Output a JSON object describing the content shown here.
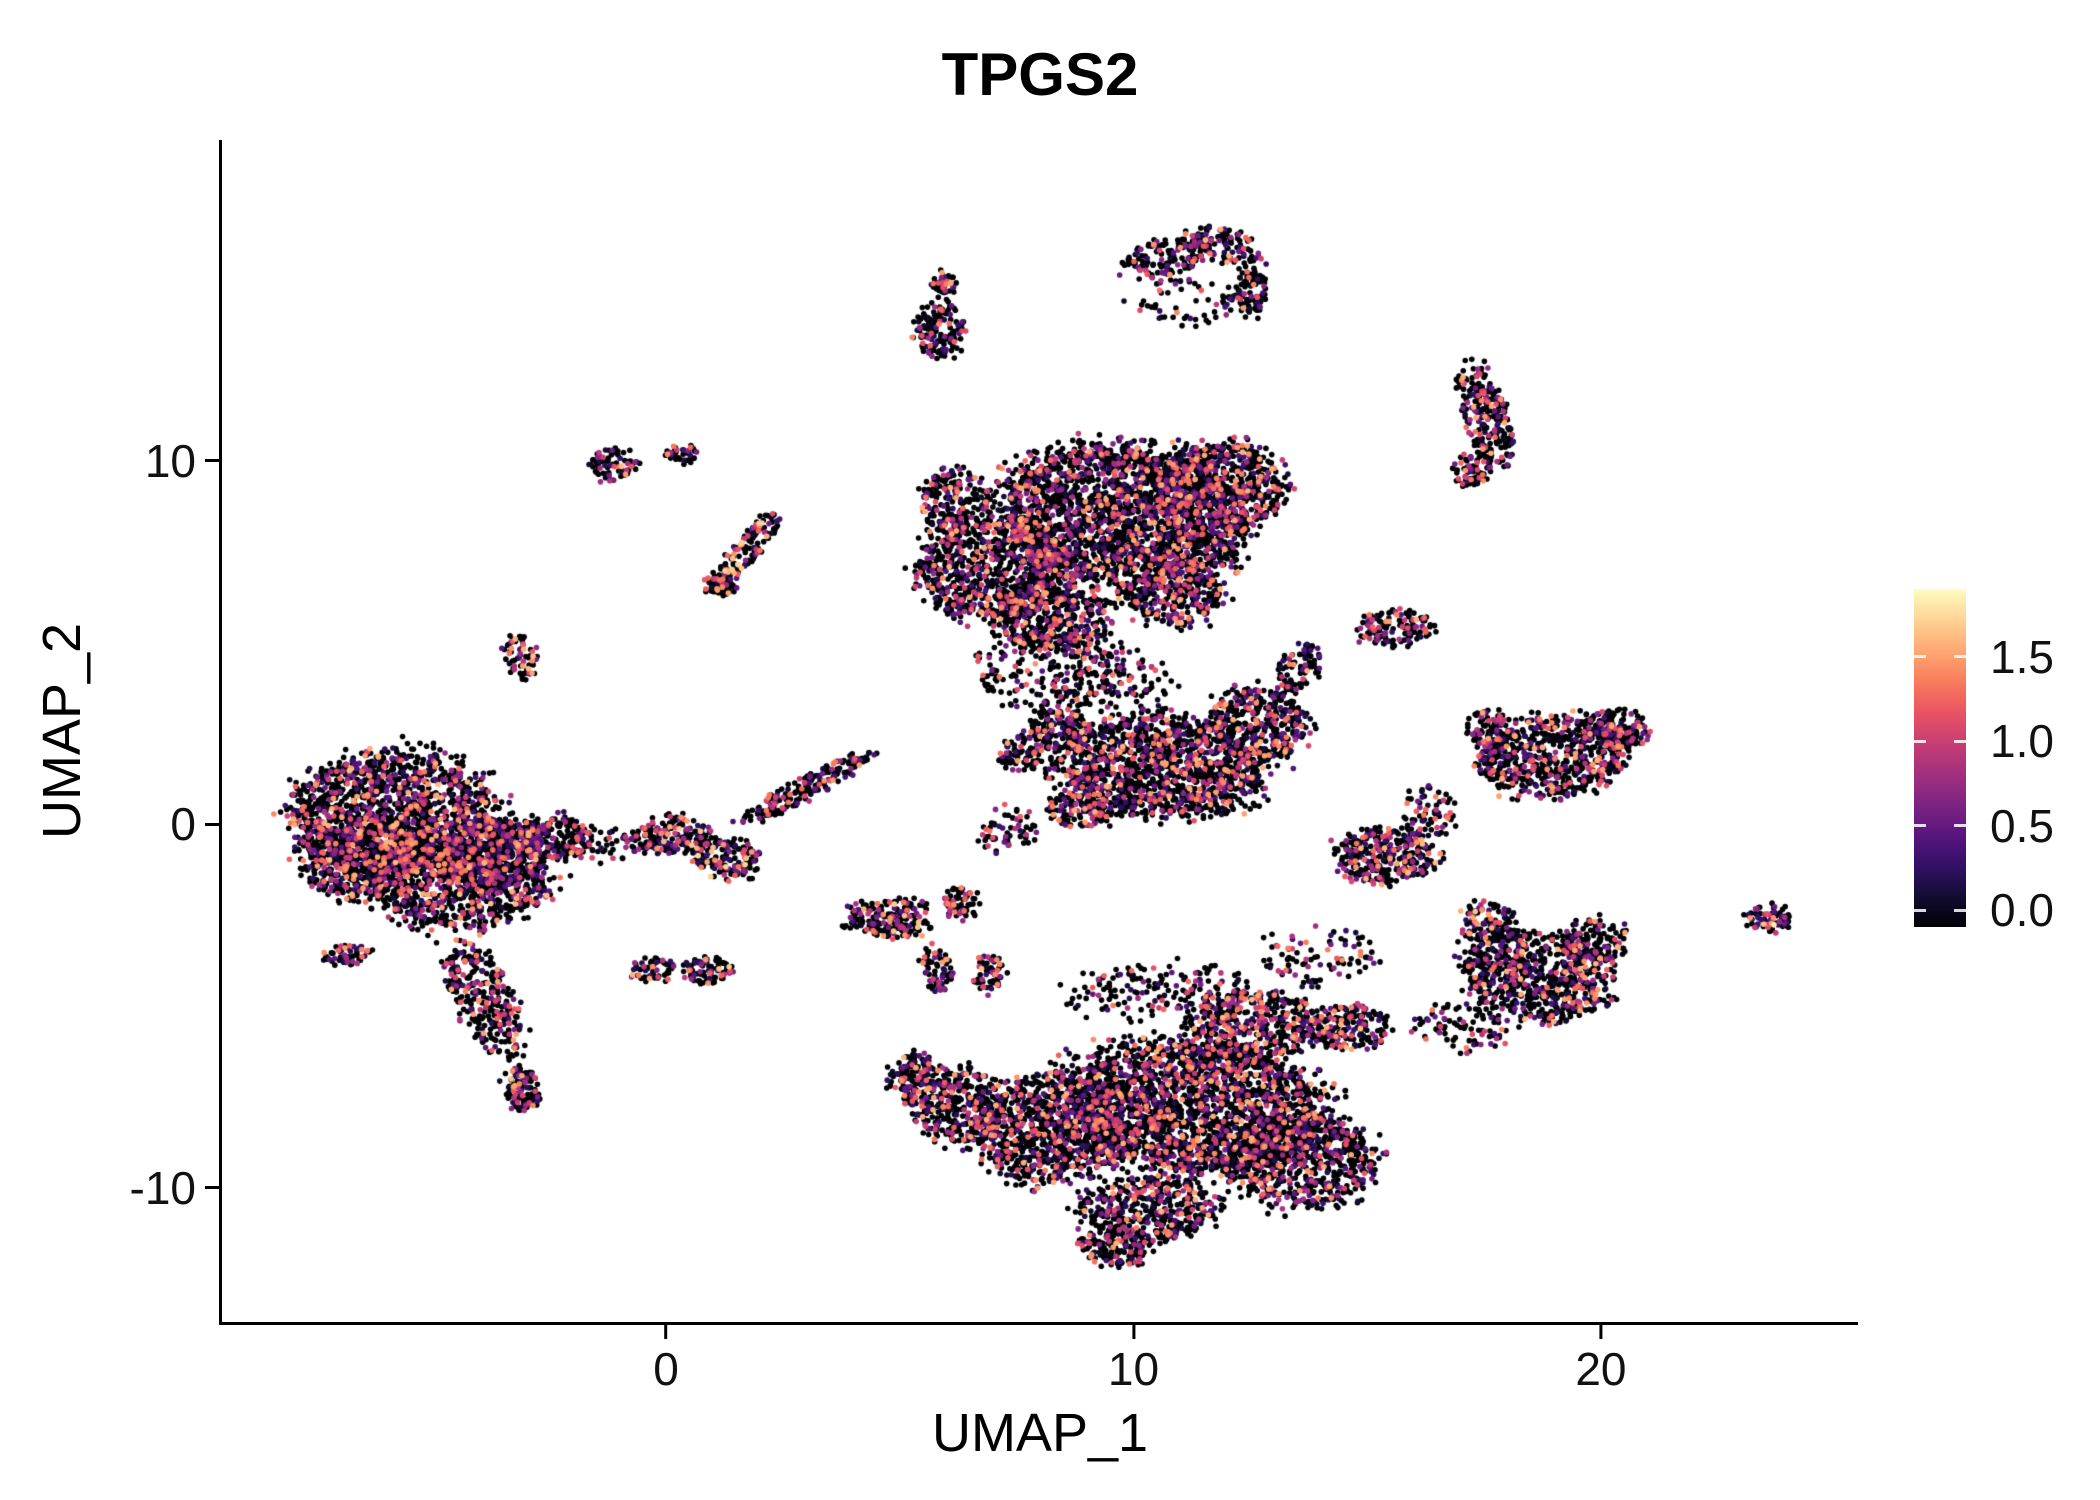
{
  "chart_data": {
    "type": "scatter",
    "title": "TPGS2",
    "xlabel": "UMAP_1",
    "ylabel": "UMAP_2",
    "x_ticks": [
      "0",
      "10",
      "20"
    ],
    "x_tick_values": [
      0,
      10,
      20
    ],
    "y_ticks": [
      "-10",
      "0",
      "10"
    ],
    "y_tick_values": [
      -10,
      0,
      10
    ],
    "xlim": [
      -9.5,
      25.5
    ],
    "ylim": [
      -13.7,
      18.82
    ],
    "grid": false,
    "legend": {
      "position": "right",
      "labels": [
        "1.5",
        "1.0",
        "0.5",
        "0.0"
      ],
      "values": [
        1.5,
        1.0,
        0.5,
        0.0
      ],
      "vmin": -0.1,
      "vmax": 1.9
    },
    "colormap": {
      "name": "magma",
      "stops": [
        "#000004",
        "#120D31",
        "#331067",
        "#59157E",
        "#7E2482",
        "#A3307E",
        "#C83E73",
        "#E95462",
        "#F97C5D",
        "#FEA873",
        "#FED395",
        "#FCFDBF"
      ]
    },
    "point_radius_px": 2.8,
    "point_value_max": 1.9,
    "clusters": [
      {
        "cx": -5.8,
        "cy": 0.3,
        "rx": 2.0,
        "ry": 1.6,
        "rot": 0,
        "n": 1500,
        "hot": 1.1
      },
      {
        "cx": -4.4,
        "cy": -1.4,
        "rx": 1.8,
        "ry": 1.4,
        "rot": 0,
        "n": 1100,
        "hot": 1.1
      },
      {
        "cx": -6.6,
        "cy": -0.9,
        "rx": 1.1,
        "ry": 1.1,
        "rot": 0,
        "n": 500,
        "hot": 1.0
      },
      {
        "cx": -3.6,
        "cy": -0.8,
        "rx": 1.0,
        "ry": 0.9,
        "rot": 0,
        "n": 350,
        "hot": 1.0
      },
      {
        "cx": -3.9,
        "cy": -4.8,
        "rx": 0.6,
        "ry": 1.6,
        "rot": 20,
        "n": 300,
        "hot": 0.9
      },
      {
        "cx": -3.1,
        "cy": -7.3,
        "rx": 0.35,
        "ry": 0.6,
        "rot": 15,
        "n": 110,
        "hot": 1.2
      },
      {
        "cx": -6.8,
        "cy": -3.6,
        "rx": 0.5,
        "ry": 0.28,
        "rot": 10,
        "n": 60,
        "hot": 0.8
      },
      {
        "cx": -2.4,
        "cy": -0.4,
        "rx": 0.8,
        "ry": 0.6,
        "rot": 0,
        "n": 200,
        "hot": 1.0
      },
      {
        "cx": -1.2,
        "cy": -0.6,
        "rx": 0.9,
        "ry": 0.4,
        "rot": 0,
        "n": 70,
        "hot": 0.6
      },
      {
        "cx": -3.1,
        "cy": 4.6,
        "rx": 0.35,
        "ry": 0.6,
        "rot": 0,
        "n": 70,
        "hot": 1.2
      },
      {
        "cx": -1.15,
        "cy": 9.9,
        "rx": 0.45,
        "ry": 0.4,
        "rot": 0,
        "n": 80,
        "hot": 1.3
      },
      {
        "cx": 0.35,
        "cy": 10.2,
        "rx": 0.3,
        "ry": 0.25,
        "rot": 0,
        "n": 40,
        "hot": 1.0
      },
      {
        "cx": 1.75,
        "cy": 7.6,
        "rx": 0.28,
        "ry": 1.05,
        "rot": -32,
        "n": 130,
        "hot": 1.4
      },
      {
        "cx": 1.15,
        "cy": 6.6,
        "rx": 0.33,
        "ry": 0.33,
        "rot": 0,
        "n": 60,
        "hot": 1.3
      },
      {
        "cx": 0.2,
        "cy": -0.3,
        "rx": 0.7,
        "ry": 0.5,
        "rot": 0,
        "n": 170,
        "hot": 1.3
      },
      {
        "cx": 1.3,
        "cy": -0.95,
        "rx": 0.65,
        "ry": 0.5,
        "rot": 0,
        "n": 150,
        "hot": 1.5
      },
      {
        "cx": 3.0,
        "cy": 1.0,
        "rx": 0.28,
        "ry": 1.6,
        "rot": -56,
        "n": 200,
        "hot": 0.9
      },
      {
        "cx": -0.3,
        "cy": -4.0,
        "rx": 0.45,
        "ry": 0.3,
        "rot": 0,
        "n": 60,
        "hot": 1.1
      },
      {
        "cx": 0.9,
        "cy": -4.05,
        "rx": 0.5,
        "ry": 0.33,
        "rot": 0,
        "n": 80,
        "hot": 1.4
      },
      {
        "cx": 4.8,
        "cy": -2.6,
        "rx": 0.85,
        "ry": 0.5,
        "rot": 0,
        "n": 190,
        "hot": 1.3
      },
      {
        "cx": 6.3,
        "cy": -2.2,
        "rx": 0.4,
        "ry": 0.4,
        "rot": 0,
        "n": 70,
        "hot": 1.0
      },
      {
        "cx": 5.8,
        "cy": -4.0,
        "rx": 0.3,
        "ry": 0.6,
        "rot": 10,
        "n": 70,
        "hot": 1.0
      },
      {
        "cx": 6.9,
        "cy": -4.1,
        "rx": 0.3,
        "ry": 0.5,
        "rot": 0,
        "n": 60,
        "hot": 1.2
      },
      {
        "cx": 9.8,
        "cy": 8.5,
        "rx": 2.5,
        "ry": 1.8,
        "rot": -10,
        "n": 2300,
        "hot": 1.0
      },
      {
        "cx": 7.0,
        "cy": 7.0,
        "rx": 1.5,
        "ry": 1.3,
        "rot": 0,
        "n": 850,
        "hot": 1.0
      },
      {
        "cx": 11.9,
        "cy": 9.3,
        "rx": 1.3,
        "ry": 1.1,
        "rot": 0,
        "n": 600,
        "hot": 1.0
      },
      {
        "cx": 8.3,
        "cy": 5.7,
        "rx": 1.2,
        "ry": 0.9,
        "rot": 0,
        "n": 420,
        "hot": 1.0
      },
      {
        "cx": 8.2,
        "cy": 4.2,
        "rx": 1.5,
        "ry": 1.1,
        "rot": 0,
        "n": 230,
        "hot": 0.8
      },
      {
        "cx": 6.2,
        "cy": 8.8,
        "rx": 0.7,
        "ry": 0.9,
        "rot": 0,
        "n": 230,
        "hot": 1.0
      },
      {
        "cx": 10.9,
        "cy": 6.3,
        "rx": 1.0,
        "ry": 0.8,
        "rot": 0,
        "n": 300,
        "hot": 1.0
      },
      {
        "cx": 5.85,
        "cy": 13.6,
        "rx": 0.5,
        "ry": 0.75,
        "rot": 0,
        "n": 150,
        "hot": 1.0
      },
      {
        "cx": 5.95,
        "cy": 14.9,
        "rx": 0.25,
        "ry": 0.3,
        "rot": 0,
        "n": 40,
        "hot": 0.9
      },
      {
        "cx": 10.7,
        "cy": 15.6,
        "rx": 0.9,
        "ry": 0.45,
        "rot": 18,
        "n": 150,
        "hot": 1.1
      },
      {
        "cx": 12.0,
        "cy": 15.9,
        "rx": 0.8,
        "ry": 0.4,
        "rot": -28,
        "n": 110,
        "hot": 1.1
      },
      {
        "cx": 12.5,
        "cy": 14.7,
        "rx": 0.3,
        "ry": 0.75,
        "rot": 0,
        "n": 80,
        "hot": 1.0
      },
      {
        "cx": 11.2,
        "cy": 14.4,
        "rx": 1.2,
        "ry": 0.6,
        "rot": 0,
        "n": 70,
        "hot": 0.7
      },
      {
        "cx": 17.55,
        "cy": 11.2,
        "rx": 0.45,
        "ry": 1.4,
        "rot": 14,
        "n": 240,
        "hot": 1.1
      },
      {
        "cx": 17.2,
        "cy": 9.7,
        "rx": 0.4,
        "ry": 0.4,
        "rot": 0,
        "n": 70,
        "hot": 1.0
      },
      {
        "cx": 15.6,
        "cy": 5.4,
        "rx": 0.75,
        "ry": 0.5,
        "rot": 0,
        "n": 130,
        "hot": 1.1
      },
      {
        "cx": 10.6,
        "cy": 1.6,
        "rx": 2.1,
        "ry": 1.3,
        "rot": -5,
        "n": 1350,
        "hot": 1.0
      },
      {
        "cx": 12.7,
        "cy": 2.8,
        "rx": 1.0,
        "ry": 0.85,
        "rot": -30,
        "n": 350,
        "hot": 1.0
      },
      {
        "cx": 13.55,
        "cy": 4.3,
        "rx": 0.4,
        "ry": 0.65,
        "rot": -20,
        "n": 90,
        "hot": 1.0
      },
      {
        "cx": 8.4,
        "cy": 2.6,
        "rx": 0.6,
        "ry": 0.5,
        "rot": 0,
        "n": 140,
        "hot": 1.1
      },
      {
        "cx": 7.6,
        "cy": 1.9,
        "rx": 0.4,
        "ry": 0.5,
        "rot": 0,
        "n": 80,
        "hot": 1.0
      },
      {
        "cx": 8.9,
        "cy": 0.4,
        "rx": 0.7,
        "ry": 0.5,
        "rot": 0,
        "n": 140,
        "hot": 1.0
      },
      {
        "cx": 9.6,
        "cy": 3.9,
        "rx": 1.2,
        "ry": 0.8,
        "rot": 0,
        "n": 110,
        "hot": 0.7
      },
      {
        "cx": 7.3,
        "cy": -0.2,
        "rx": 0.6,
        "ry": 0.6,
        "rot": 0,
        "n": 60,
        "hot": 0.7
      },
      {
        "cx": 11.3,
        "cy": -7.8,
        "rx": 2.7,
        "ry": 1.7,
        "rot": -8,
        "n": 2300,
        "hot": 1.0
      },
      {
        "cx": 8.3,
        "cy": -8.4,
        "rx": 1.6,
        "ry": 1.4,
        "rot": 0,
        "n": 900,
        "hot": 1.0
      },
      {
        "cx": 13.6,
        "cy": -9.3,
        "rx": 1.5,
        "ry": 1.2,
        "rot": 0,
        "n": 650,
        "hot": 1.0
      },
      {
        "cx": 12.6,
        "cy": -5.5,
        "rx": 1.3,
        "ry": 0.9,
        "rot": 0,
        "n": 420,
        "hot": 1.1
      },
      {
        "cx": 14.6,
        "cy": -5.6,
        "rx": 0.8,
        "ry": 0.6,
        "rot": 0,
        "n": 190,
        "hot": 1.2
      },
      {
        "cx": 10.3,
        "cy": -10.6,
        "rx": 1.4,
        "ry": 0.85,
        "rot": 0,
        "n": 450,
        "hot": 1.0
      },
      {
        "cx": 9.6,
        "cy": -11.7,
        "rx": 0.7,
        "ry": 0.45,
        "rot": 0,
        "n": 140,
        "hot": 1.0
      },
      {
        "cx": 6.3,
        "cy": -7.8,
        "rx": 0.9,
        "ry": 1.0,
        "rot": 0,
        "n": 330,
        "hot": 1.0
      },
      {
        "cx": 5.3,
        "cy": -7.0,
        "rx": 0.5,
        "ry": 0.65,
        "rot": 0,
        "n": 140,
        "hot": 1.1
      },
      {
        "cx": 10.6,
        "cy": -4.7,
        "rx": 2.0,
        "ry": 0.8,
        "rot": 0,
        "n": 190,
        "hot": 0.7
      },
      {
        "cx": 13.9,
        "cy": -3.6,
        "rx": 1.2,
        "ry": 0.8,
        "rot": 0,
        "n": 90,
        "hot": 0.7
      },
      {
        "cx": 19.0,
        "cy": 1.9,
        "rx": 1.45,
        "ry": 1.05,
        "rot": 10,
        "n": 650,
        "hot": 1.0
      },
      {
        "cx": 20.3,
        "cy": 2.6,
        "rx": 0.65,
        "ry": 0.55,
        "rot": 0,
        "n": 140,
        "hot": 1.0
      },
      {
        "cx": 17.6,
        "cy": 2.6,
        "rx": 0.5,
        "ry": 0.5,
        "rot": 0,
        "n": 90,
        "hot": 1.0
      },
      {
        "cx": 15.4,
        "cy": -0.9,
        "rx": 1.0,
        "ry": 0.75,
        "rot": 0,
        "n": 340,
        "hot": 1.2
      },
      {
        "cx": 16.3,
        "cy": 0.3,
        "rx": 0.5,
        "ry": 0.7,
        "rot": 0,
        "n": 70,
        "hot": 0.8
      },
      {
        "cx": 18.6,
        "cy": -4.2,
        "rx": 1.5,
        "ry": 1.1,
        "rot": -15,
        "n": 700,
        "hot": 1.1
      },
      {
        "cx": 19.9,
        "cy": -3.2,
        "rx": 0.65,
        "ry": 0.55,
        "rot": 0,
        "n": 140,
        "hot": 1.0
      },
      {
        "cx": 17.6,
        "cy": -2.7,
        "rx": 0.55,
        "ry": 0.55,
        "rot": 0,
        "n": 120,
        "hot": 1.2
      },
      {
        "cx": 17.0,
        "cy": -5.6,
        "rx": 1.0,
        "ry": 0.6,
        "rot": 0,
        "n": 90,
        "hot": 0.7
      },
      {
        "cx": 23.6,
        "cy": -2.6,
        "rx": 0.45,
        "ry": 0.38,
        "rot": 0,
        "n": 75,
        "hot": 1.7
      }
    ]
  }
}
